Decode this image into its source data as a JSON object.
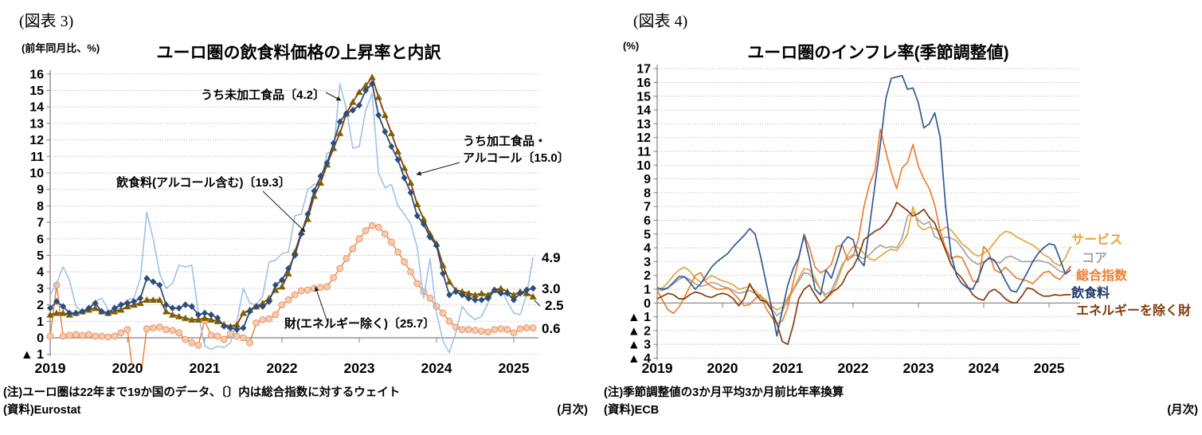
{
  "fig3": {
    "figure_label": "(図表 3)",
    "unit_label": "(前年同月比、%)",
    "title": "ユーロ圏の飲食料価格の上昇率と内訳",
    "annotations": {
      "unprocessed": "うち未加工食品〔4.2〕",
      "processed_l1": "うち加工食品・",
      "processed_l2": "アルコール〔15.0〕",
      "food": "飲食料(アルコール含む)〔19.3〕",
      "goods": "財(エネルギー除く)〔25.7〕"
    },
    "end_labels": {
      "unprocessed": "4.9",
      "food": "3.0",
      "processed": "2.5",
      "goods": "0.6"
    },
    "note": "(注)ユーロ圏は22年まで19か国のデータ、〔〕内は総合指数に対するウェイト",
    "source": "(資料)Eurostat",
    "frequency": "(月次)",
    "chart_data": {
      "type": "line",
      "x_unit": "month",
      "x_start": "2019-01",
      "x_end": "2025-04",
      "x_tick_labels": [
        "2019",
        "2020",
        "2021",
        "2022",
        "2023",
        "2024",
        "2025"
      ],
      "ylim": [
        -1,
        16
      ],
      "grid": "horizontal-dotted",
      "series": [
        {
          "name": "うち未加工食品〔4.2〕",
          "line_color": "#9DC3E6",
          "width": 1.6,
          "marker": "none",
          "draw_order": 2,
          "end_label": "4.9",
          "values": [
            2.6,
            3.3,
            4.3,
            3.5,
            1.9,
            1.6,
            1.8,
            2.2,
            2.4,
            1.7,
            1.5,
            2.0,
            2.3,
            2.4,
            3.6,
            7.6,
            6.0,
            3.9,
            3.0,
            3.3,
            4.4,
            4.3,
            4.4,
            1.5,
            -0.5,
            -0.7,
            -0.5,
            -0.6,
            -0.3,
            1.0,
            3.0,
            2.1,
            2.0,
            2.5,
            4.6,
            4.7,
            5.1,
            5.2,
            7.4,
            7.5,
            9.0,
            9.3,
            9.4,
            11.2,
            11.3,
            15.4,
            13.9,
            11.5,
            11.6,
            13.8,
            14.8,
            10.0,
            9.1,
            9.3,
            8.0,
            7.5,
            6.9,
            5.5,
            2.4,
            4.8,
            1.5,
            -0.2,
            -0.9,
            0.3,
            1.9,
            1.4,
            1.1,
            1.3,
            2.1,
            2.9,
            3.0,
            2.2,
            1.5,
            1.4,
            2.6,
            4.9
          ]
        },
        {
          "name": "飲食料(アルコール含む)〔19.3〕",
          "line_color": "#2E4D7B",
          "width": 1.8,
          "marker": "diamond",
          "marker_color": "#2E4D7B",
          "draw_order": 4,
          "end_label": "3.0",
          "values": [
            1.8,
            2.2,
            1.9,
            1.5,
            1.5,
            1.6,
            1.8,
            2.1,
            1.6,
            1.5,
            1.8,
            2.0,
            2.1,
            2.2,
            2.4,
            3.6,
            3.4,
            3.2,
            2.0,
            1.8,
            1.8,
            2.0,
            1.9,
            1.4,
            1.5,
            1.4,
            1.2,
            0.7,
            0.6,
            0.5,
            0.6,
            1.6,
            1.9,
            1.9,
            2.2,
            3.2,
            3.5,
            4.2,
            5.0,
            6.3,
            7.5,
            8.9,
            9.8,
            10.6,
            11.8,
            13.1,
            13.6,
            13.8,
            14.1,
            15.0,
            15.4,
            13.5,
            12.5,
            11.6,
            10.8,
            9.7,
            8.8,
            7.4,
            6.9,
            6.1,
            5.6,
            3.9,
            2.6,
            2.8,
            2.6,
            2.4,
            2.3,
            2.3,
            2.4,
            2.9,
            2.7,
            2.7,
            2.3,
            2.7,
            2.9,
            3.0
          ]
        },
        {
          "name": "うち加工食品・アルコール〔15.0〕",
          "line_color": "#843C0C",
          "width": 1.8,
          "marker": "triangle",
          "marker_color": "#7F6000",
          "draw_order": 3,
          "end_label": "2.5",
          "values": [
            1.4,
            1.5,
            1.5,
            1.4,
            1.5,
            1.6,
            1.7,
            1.8,
            1.6,
            1.5,
            1.6,
            1.7,
            1.9,
            2.0,
            2.1,
            2.3,
            2.3,
            2.3,
            1.6,
            1.4,
            1.3,
            1.2,
            1.1,
            1.1,
            1.2,
            1.1,
            1.0,
            0.8,
            0.7,
            0.8,
            1.5,
            1.7,
            1.9,
            2.1,
            2.4,
            2.9,
            3.1,
            3.9,
            5.2,
            6.4,
            7.2,
            8.6,
            9.4,
            10.5,
            11.5,
            12.4,
            13.6,
            14.3,
            14.9,
            15.3,
            15.8,
            14.6,
            13.5,
            12.4,
            11.3,
            10.3,
            9.4,
            8.1,
            7.2,
            6.3,
            5.7,
            4.4,
            3.4,
            2.9,
            2.8,
            2.7,
            2.6,
            2.7,
            2.6,
            2.9,
            3.0,
            2.8,
            2.6,
            2.8,
            2.7,
            2.5
          ]
        },
        {
          "name": "財(エネルギー除く)〔25.7〕",
          "line_color": "#ED7D31",
          "width": 1.4,
          "marker": "circle",
          "marker_fill": "#F8CBAD",
          "marker_color": "#E8936A",
          "draw_order": 1,
          "end_label": "0.6",
          "values": [
            0.1,
            3.2,
            0.1,
            0.15,
            0.2,
            0.15,
            0.2,
            0.1,
            0.1,
            0.05,
            0.1,
            0.3,
            0.5,
            -2.6,
            -2.6,
            0.55,
            0.6,
            0.65,
            0.5,
            0.45,
            0.3,
            -0.1,
            -0.3,
            -0.45,
            1.05,
            0.15,
            0.1,
            -0.1,
            0.25,
            0.1,
            0.0,
            -0.3,
            0.9,
            1.1,
            1.15,
            1.4,
            2.0,
            2.3,
            2.6,
            2.85,
            2.9,
            3.0,
            3.05,
            3.1,
            3.65,
            4.2,
            4.8,
            5.4,
            6.0,
            6.5,
            6.8,
            6.7,
            6.3,
            5.8,
            5.2,
            4.6,
            4.0,
            3.3,
            2.8,
            2.4,
            1.9,
            1.5,
            1.0,
            0.65,
            0.5,
            0.5,
            0.45,
            0.4,
            0.35,
            0.5,
            0.55,
            0.5,
            0.3,
            0.55,
            0.6,
            0.6
          ]
        }
      ]
    }
  },
  "fig4": {
    "figure_label": "(図表 4)",
    "unit_label": "(%)",
    "title": "ユーロ圏のインフレ率(季節調整値)",
    "legend": [
      {
        "label": "サービス",
        "color": "#E8A33D"
      },
      {
        "label": "コア",
        "color": "#A5A5A5"
      },
      {
        "label": "総合指数",
        "color": "#ED7D31"
      },
      {
        "label": "飲食料",
        "color": "#1F3864"
      },
      {
        "label": "エネルギーを除く財",
        "color": "#843C0C"
      }
    ],
    "note": "(注)季節調整値の3か月平均3か月前比年率換算",
    "source": "(資料)ECB",
    "frequency": "(月次)",
    "chart_data": {
      "type": "line",
      "x_unit": "month",
      "x_start": "2019-01",
      "x_end": "2025-05",
      "x_tick_labels": [
        "2019",
        "2020",
        "2021",
        "2022",
        "2023",
        "2024",
        "2025"
      ],
      "ylim": [
        -4,
        17
      ],
      "grid": "horizontal-dotted",
      "series": [
        {
          "name": "サービス",
          "line_color": "#E8A33D",
          "width": 1.7,
          "marker": "none",
          "draw_order": 2,
          "values": [
            0.9,
            1.1,
            1.5,
            2.0,
            2.4,
            2.6,
            2.3,
            1.8,
            1.5,
            1.7,
            2.0,
            1.8,
            1.6,
            1.5,
            1.3,
            1.0,
            1.1,
            1.2,
            0.9,
            0.5,
            0.2,
            -0.2,
            -0.5,
            -0.3,
            0.4,
            1.0,
            1.8,
            2.5,
            2.4,
            1.8,
            1.0,
            0.4,
            0.6,
            1.5,
            2.6,
            3.5,
            4.1,
            4.0,
            3.6,
            3.2,
            3.1,
            3.4,
            3.7,
            3.9,
            3.8,
            4.3,
            5.0,
            7.0,
            5.6,
            5.3,
            5.5,
            5.4,
            5.2,
            5.5,
            5.3,
            4.8,
            4.3,
            4.0,
            3.6,
            3.4,
            3.6,
            3.9,
            4.4,
            4.9,
            5.2,
            5.1,
            4.8,
            4.6,
            4.4,
            4.2,
            3.9,
            3.5,
            3.3,
            2.9,
            2.7,
            3.3,
            4.1
          ]
        },
        {
          "name": "コア",
          "line_color": "#A5A5A5",
          "width": 1.7,
          "marker": "none",
          "draw_order": 1,
          "values": [
            1.0,
            0.9,
            1.1,
            1.4,
            1.7,
            1.9,
            1.7,
            1.4,
            1.2,
            1.3,
            1.5,
            1.4,
            1.2,
            1.1,
            0.9,
            0.7,
            0.8,
            0.9,
            0.7,
            0.4,
            0.1,
            -0.4,
            -0.9,
            -0.6,
            0.2,
            0.9,
            1.6,
            2.2,
            2.1,
            1.6,
            1.0,
            0.6,
            0.9,
            1.8,
            2.8,
            3.3,
            3.5,
            3.4,
            3.2,
            3.5,
            3.9,
            4.2,
            4.0,
            4.1,
            4.0,
            4.7,
            6.3,
            6.6,
            6.0,
            5.7,
            5.9,
            4.8,
            4.6,
            4.8,
            4.7,
            4.5,
            4.0,
            3.4,
            3.0,
            2.8,
            3.0,
            3.2,
            3.0,
            2.9,
            3.3,
            3.4,
            3.2,
            3.0,
            3.0,
            3.0,
            3.1,
            3.0,
            2.9,
            2.6,
            2.3,
            2.2,
            2.6
          ]
        },
        {
          "name": "総合指数",
          "line_color": "#ED7D31",
          "width": 1.7,
          "marker": "none",
          "draw_order": 3,
          "values": [
            0.9,
            0.2,
            -0.5,
            -0.75,
            -0.3,
            0.4,
            1.2,
            2.0,
            2.2,
            1.5,
            1.2,
            1.0,
            1.0,
            1.1,
            0.7,
            0.3,
            -0.2,
            -0.1,
            0.3,
            0.6,
            -0.4,
            -1.0,
            -1.5,
            -1.3,
            -0.3,
            1.5,
            3.2,
            5.0,
            4.0,
            2.6,
            2.2,
            2.4,
            2.8,
            4.1,
            4.2,
            3.1,
            3.4,
            4.7,
            7.0,
            8.6,
            9.6,
            12.6,
            11.0,
            9.5,
            8.3,
            9.8,
            10.2,
            11.5,
            9.9,
            9.0,
            8.3,
            7.1,
            5.2,
            4.0,
            3.2,
            3.4,
            3.3,
            2.5,
            1.6,
            1.5,
            4.1,
            3.6,
            2.4,
            2.2,
            2.6,
            2.2,
            1.8,
            1.7,
            1.6,
            1.4,
            1.8,
            2.2,
            2.3,
            1.9,
            1.7,
            2.2,
            2.7
          ]
        },
        {
          "name": "飲食料",
          "line_color": "#305A96",
          "width": 1.7,
          "marker": "none",
          "draw_order": 5,
          "values": [
            1.1,
            1.0,
            1.1,
            1.5,
            1.9,
            1.9,
            1.5,
            1.0,
            1.4,
            2.0,
            2.6,
            3.0,
            3.3,
            3.6,
            4.1,
            4.5,
            4.9,
            5.4,
            5.0,
            3.4,
            1.5,
            -0.3,
            -2.4,
            -0.5,
            1.3,
            2.5,
            3.3,
            4.9,
            3.2,
            1.0,
            0.6,
            2.4,
            1.8,
            3.0,
            4.3,
            4.8,
            4.6,
            3.2,
            2.7,
            5.5,
            8.5,
            11.5,
            14.8,
            16.3,
            16.4,
            16.5,
            15.5,
            15.6,
            14.5,
            12.7,
            13.0,
            13.8,
            12.0,
            7.0,
            3.5,
            2.0,
            1.4,
            1.1,
            1.0,
            1.8,
            2.9,
            3.3,
            3.1,
            2.4,
            1.6,
            0.9,
            0.8,
            1.5,
            2.2,
            3.0,
            3.6,
            4.0,
            4.3,
            4.2,
            3.2,
            2.1,
            2.4
          ]
        },
        {
          "name": "エネルギーを除く財",
          "line_color": "#843C0C",
          "width": 1.7,
          "marker": "none",
          "draw_order": 4,
          "values": [
            0.3,
            0.5,
            0.7,
            0.6,
            0.3,
            0.3,
            0.6,
            0.8,
            0.7,
            0.5,
            0.4,
            0.6,
            0.7,
            0.6,
            0.3,
            -0.2,
            0.3,
            1.4,
            0.7,
            0.2,
            0.1,
            -0.5,
            -1.5,
            -2.8,
            -3.0,
            -1.6,
            0.3,
            1.0,
            1.3,
            0.6,
            0.0,
            0.3,
            0.8,
            1.0,
            1.4,
            2.2,
            2.6,
            3.4,
            4.6,
            4.9,
            5.2,
            5.4,
            5.8,
            6.4,
            7.3,
            7.0,
            6.7,
            6.3,
            6.5,
            6.8,
            6.2,
            5.8,
            4.8,
            3.8,
            2.8,
            2.2,
            1.8,
            1.2,
            0.6,
            0.3,
            0.2,
            0.8,
            1.0,
            0.7,
            0.3,
            0.05,
            0.0,
            0.5,
            1.1,
            1.0,
            0.7,
            0.5,
            0.5,
            0.6,
            0.55,
            0.6,
            0.6
          ]
        }
      ]
    }
  }
}
